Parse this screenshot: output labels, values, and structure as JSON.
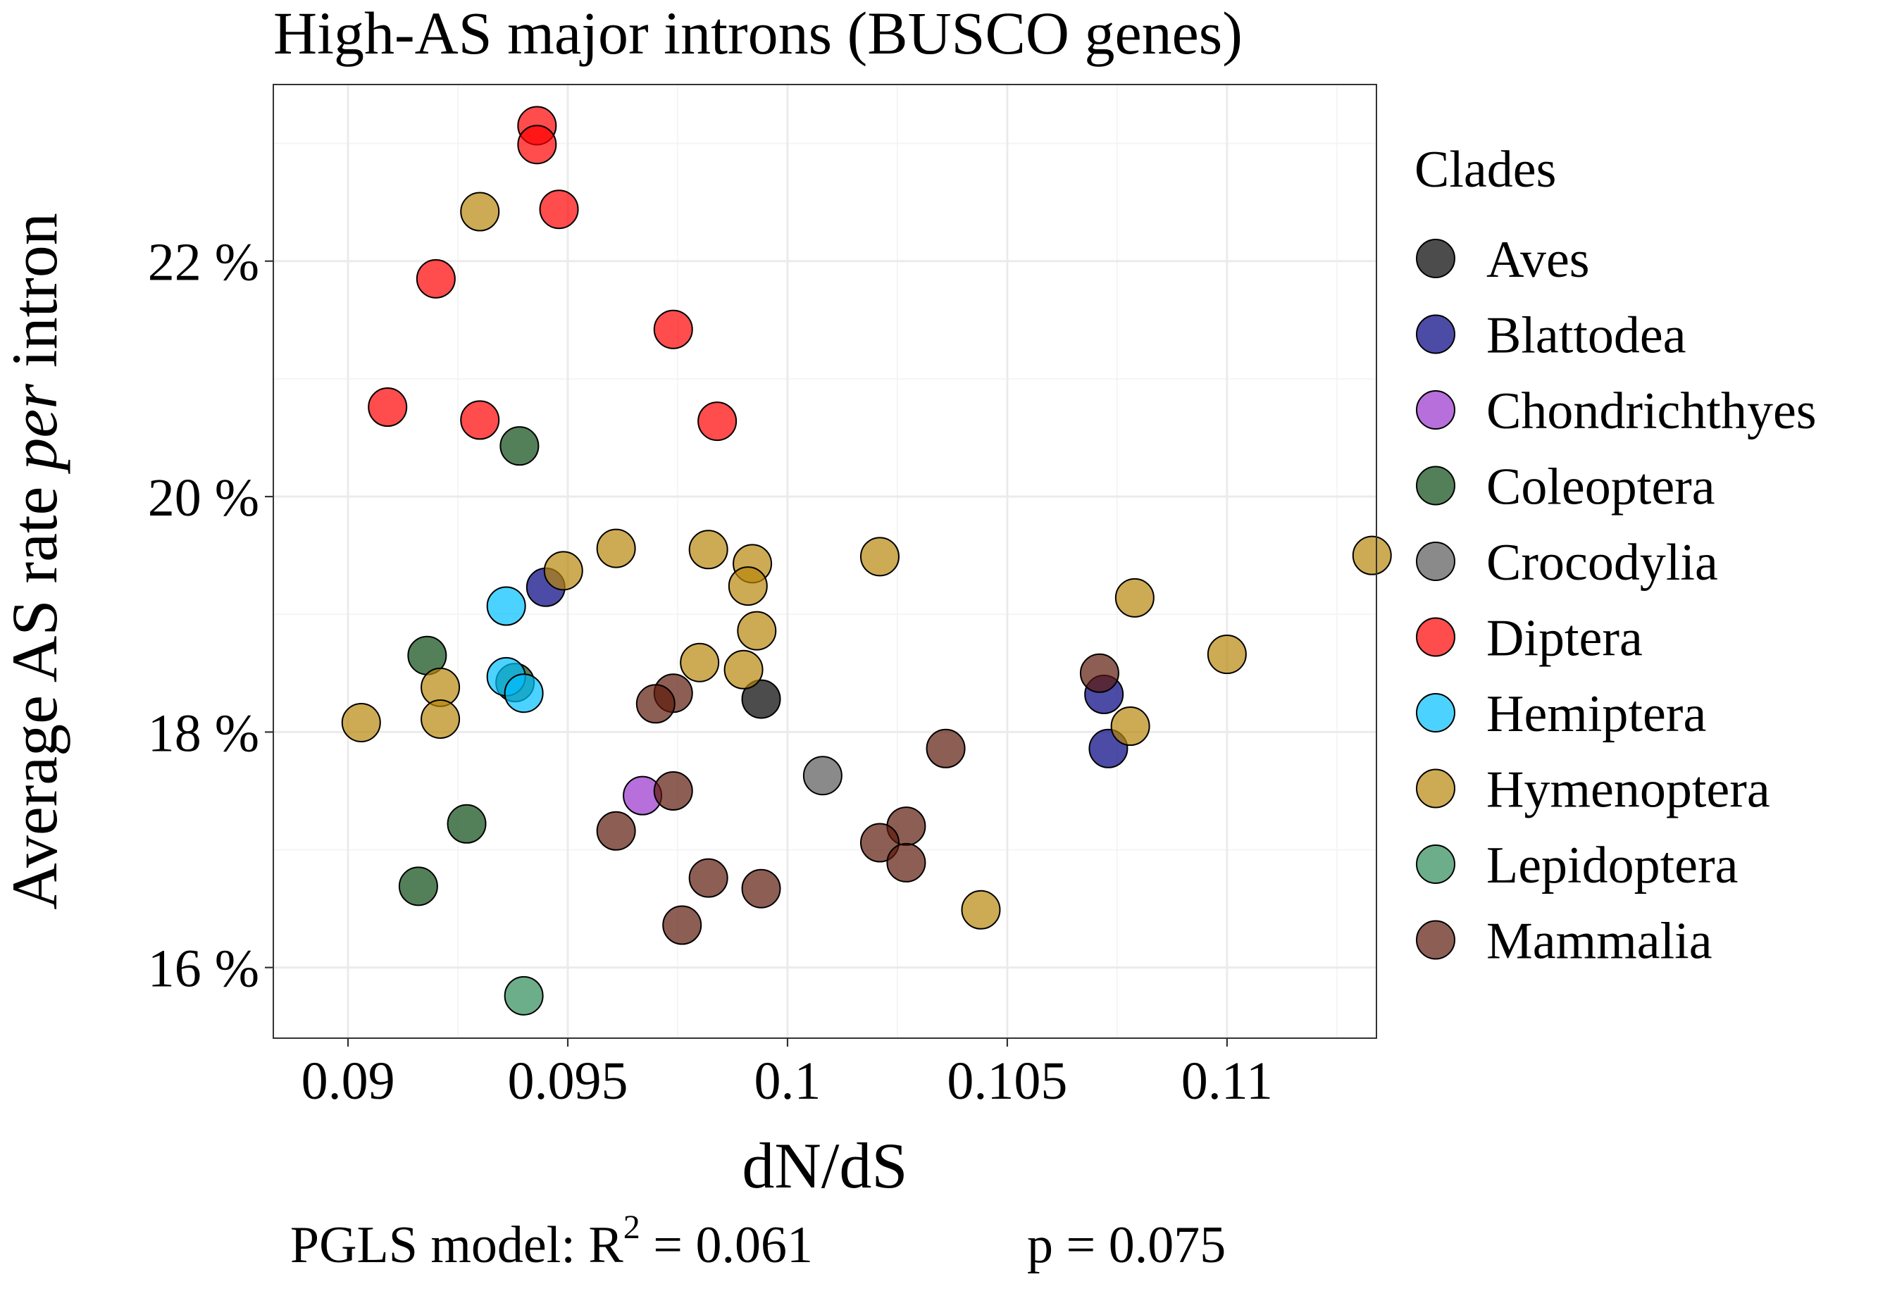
{
  "chart_data": {
    "type": "scatter",
    "title": "High-AS major introns (BUSCO genes)",
    "xlabel": "dN/dS",
    "ylabel": {
      "pre": "Average AS rate ",
      "italic": "per",
      "post": " intron"
    },
    "xlim": [
      0.0883,
      0.1134
    ],
    "ylim": [
      15.4,
      23.5
    ],
    "x_ticks": [
      0.09,
      0.095,
      0.1,
      0.105,
      0.11
    ],
    "x_tick_labels": [
      "0.09",
      "0.095",
      "0.1",
      "0.105",
      "0.11"
    ],
    "y_ticks": [
      16,
      18,
      20,
      22
    ],
    "y_tick_labels": [
      "16 %",
      "18 %",
      "20 %",
      "22 %"
    ],
    "grid": true,
    "legend": {
      "title": "Clades",
      "position": "right"
    },
    "caption": {
      "prefix": "PGLS model: R",
      "superscript": "2",
      "r2": " = 0.061",
      "p": "p = 0.075"
    },
    "series": [
      {
        "name": "Aves",
        "color": "#000000",
        "points": [
          [
            0.0994,
            18.28
          ]
        ]
      },
      {
        "name": "Blattodea",
        "color": "#000080",
        "points": [
          [
            0.0945,
            19.23
          ],
          [
            0.1072,
            18.32
          ],
          [
            0.1073,
            17.86
          ]
        ]
      },
      {
        "name": "Chondrichthyes",
        "color": "#9932cc",
        "points": [
          [
            0.0967,
            17.46
          ]
        ]
      },
      {
        "name": "Coleoptera",
        "color": "#0b4a12",
        "points": [
          [
            0.0939,
            20.43
          ],
          [
            0.0918,
            18.65
          ],
          [
            0.0938,
            18.42
          ],
          [
            0.0927,
            17.22
          ],
          [
            0.0916,
            16.69
          ]
        ]
      },
      {
        "name": "Crocodylia",
        "color": "#595959",
        "points": [
          [
            0.1008,
            17.63
          ]
        ]
      },
      {
        "name": "Diptera",
        "color": "#ff0000",
        "points": [
          [
            0.0943,
            23.15
          ],
          [
            0.0943,
            22.99
          ],
          [
            0.0948,
            22.44
          ],
          [
            0.092,
            21.85
          ],
          [
            0.0974,
            21.42
          ],
          [
            0.0909,
            20.76
          ],
          [
            0.093,
            20.65
          ],
          [
            0.0984,
            20.64
          ]
        ]
      },
      {
        "name": "Hemiptera",
        "color": "#00bfff",
        "points": [
          [
            0.0936,
            19.07
          ],
          [
            0.0936,
            18.47
          ],
          [
            0.094,
            18.33
          ]
        ]
      },
      {
        "name": "Hymenoptera",
        "color": "#b8860b",
        "points": [
          [
            0.093,
            22.42
          ],
          [
            0.0949,
            19.37
          ],
          [
            0.0961,
            19.56
          ],
          [
            0.0982,
            19.55
          ],
          [
            0.0992,
            19.43
          ],
          [
            0.0991,
            19.24
          ],
          [
            0.0993,
            18.86
          ],
          [
            0.098,
            18.59
          ],
          [
            0.099,
            18.53
          ],
          [
            0.1021,
            19.49
          ],
          [
            0.1079,
            19.14
          ],
          [
            0.11,
            18.66
          ],
          [
            0.1078,
            18.05
          ],
          [
            0.0921,
            18.38
          ],
          [
            0.0921,
            18.11
          ],
          [
            0.0903,
            18.08
          ],
          [
            0.1044,
            16.49
          ],
          [
            0.1133,
            19.5
          ]
        ]
      },
      {
        "name": "Lepidoptera",
        "color": "#2e8b57",
        "points": [
          [
            0.094,
            15.76
          ]
        ]
      },
      {
        "name": "Mammalia",
        "color": "#5c1a0b",
        "points": [
          [
            0.0974,
            18.33
          ],
          [
            0.097,
            18.24
          ],
          [
            0.1071,
            18.5
          ],
          [
            0.1036,
            17.86
          ],
          [
            0.0974,
            17.5
          ],
          [
            0.0961,
            17.16
          ],
          [
            0.1027,
            17.2
          ],
          [
            0.1021,
            17.06
          ],
          [
            0.1027,
            16.89
          ],
          [
            0.0982,
            16.76
          ],
          [
            0.0994,
            16.67
          ],
          [
            0.0976,
            16.36
          ]
        ]
      }
    ]
  }
}
